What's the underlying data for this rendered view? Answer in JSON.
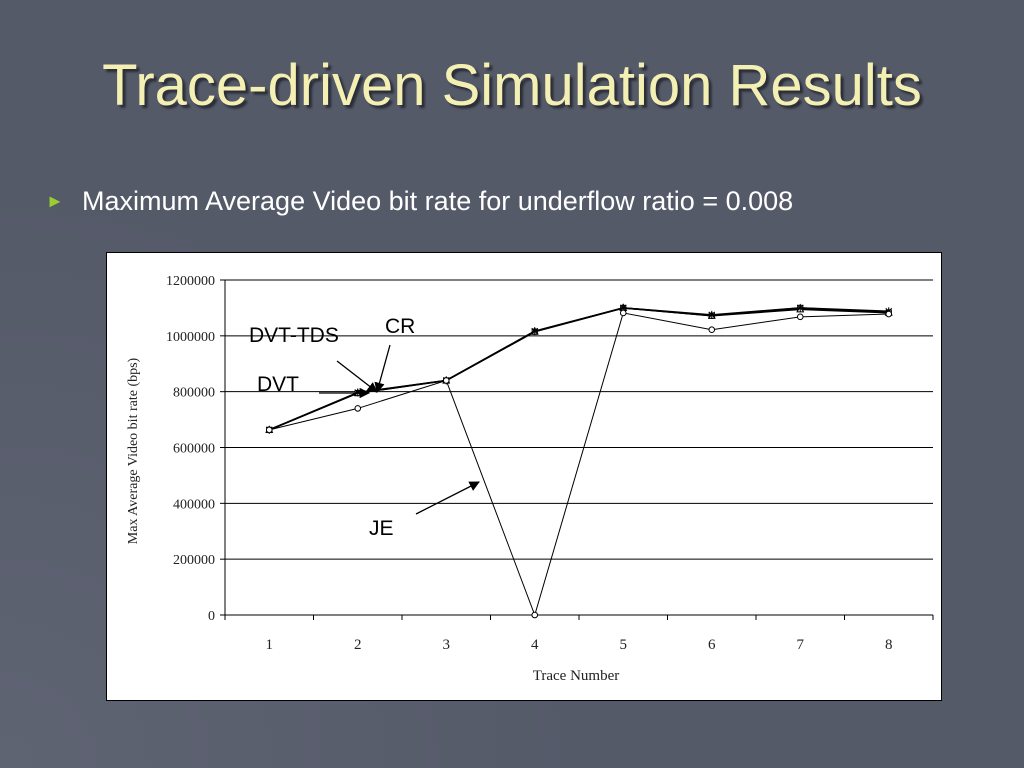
{
  "slide": {
    "title": "Trace-driven Simulation Results",
    "bullet_text": "Maximum Average Video bit rate for underflow ratio = 0.008",
    "bullet_glyph": "►"
  },
  "chart_data": {
    "type": "line",
    "xlabel": "Trace Number",
    "ylabel": "Max Average Video bit rate (bps)",
    "categories": [
      "1",
      "2",
      "3",
      "4",
      "5",
      "6",
      "7",
      "8"
    ],
    "ylim": [
      0,
      1200000
    ],
    "yticks": [
      "0",
      "200000",
      "400000",
      "600000",
      "800000",
      "1000000",
      "1200000"
    ],
    "grid": true,
    "series": [
      {
        "name": "DVT-TDS",
        "values": [
          663000,
          795000,
          840000,
          1015000,
          1100000,
          1072000,
          1100000,
          1083000
        ],
        "marker": "square"
      },
      {
        "name": "DVT",
        "values": [
          663000,
          795000,
          840000,
          1015000,
          1100000,
          1072000,
          1095000,
          1083000
        ],
        "marker": "triangle"
      },
      {
        "name": "CR",
        "values": [
          663000,
          797000,
          840000,
          1017000,
          1100000,
          1075000,
          1100000,
          1088000
        ],
        "marker": "star"
      },
      {
        "name": "JE",
        "values": [
          663000,
          740000,
          840000,
          0,
          1082000,
          1022000,
          1068000,
          1078000
        ],
        "marker": "circle"
      }
    ],
    "annotations": [
      {
        "text": "DVT-TDS",
        "target_series": "DVT-TDS"
      },
      {
        "text": "CR",
        "target_series": "CR"
      },
      {
        "text": "DVT",
        "target_series": "DVT"
      },
      {
        "text": "JE",
        "target_series": "JE"
      }
    ]
  }
}
